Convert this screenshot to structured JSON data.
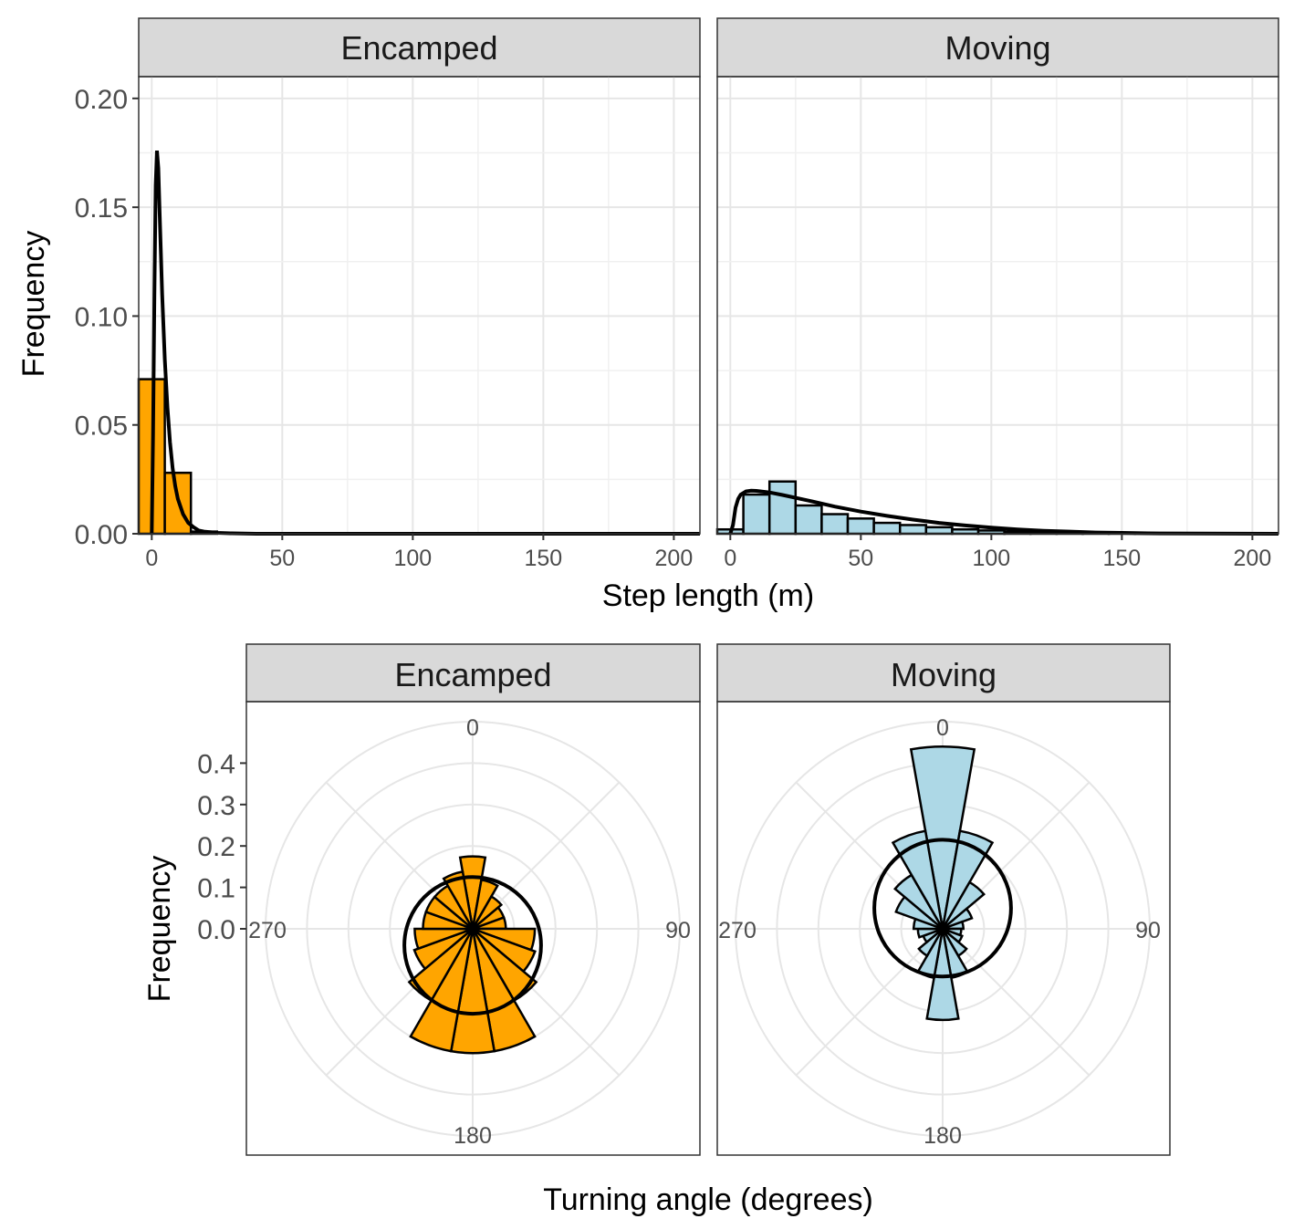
{
  "figure": {
    "top_xlabel": "Step length (m)",
    "top_ylabel": "Frequency",
    "bottom_xlabel": "Turning angle (degrees)",
    "bottom_ylabel": "Frequency"
  },
  "colors": {
    "encamped": "#FFA500",
    "moving": "#ADD8E6"
  },
  "chart_data": [
    {
      "type": "bar",
      "title": "Encamped",
      "xlabel": "Step length (m)",
      "ylabel": "Frequency",
      "xlim": [
        -5,
        210
      ],
      "ylim": [
        0,
        0.21
      ],
      "xticks": [
        "0",
        "50",
        "100",
        "150",
        "200"
      ],
      "yticks": [
        "0.00",
        "0.05",
        "0.10",
        "0.15",
        "0.20"
      ],
      "bin_width": 10,
      "bin_centers": [
        0,
        10,
        20
      ],
      "values": [
        0.071,
        0.028,
        0.001
      ],
      "density_curve": {
        "x": [
          0,
          0.5,
          1,
          1.5,
          2,
          2.5,
          3,
          4,
          5,
          6,
          7,
          8,
          9,
          10,
          12,
          14,
          16,
          18,
          20,
          25,
          30,
          40,
          60,
          100,
          150,
          210
        ],
        "y": [
          0,
          0.045,
          0.11,
          0.16,
          0.176,
          0.168,
          0.148,
          0.11,
          0.08,
          0.058,
          0.042,
          0.03,
          0.022,
          0.016,
          0.009,
          0.005,
          0.003,
          0.0015,
          0.001,
          0.0004,
          0.0002,
          0,
          0,
          0,
          0,
          0
        ]
      }
    },
    {
      "type": "bar",
      "title": "Moving",
      "xlabel": "Step length (m)",
      "ylabel": "Frequency",
      "xlim": [
        -5,
        210
      ],
      "ylim": [
        0,
        0.21
      ],
      "xticks": [
        "0",
        "50",
        "100",
        "150",
        "200"
      ],
      "bin_width": 10,
      "bin_centers": [
        0,
        10,
        20,
        30,
        40,
        50,
        60,
        70,
        80,
        90,
        100,
        110,
        120,
        130,
        140,
        150,
        160,
        170,
        180,
        190,
        200
      ],
      "values": [
        0.002,
        0.018,
        0.024,
        0.013,
        0.009,
        0.007,
        0.005,
        0.004,
        0.003,
        0.002,
        0.0015,
        0.001,
        0.0007,
        0.0005,
        0.0003,
        0.0002,
        0.0001,
        0.0001,
        0,
        0,
        0
      ],
      "density_curve": {
        "x": [
          0,
          1,
          2,
          3,
          4,
          6,
          8,
          10,
          15,
          20,
          30,
          40,
          50,
          60,
          70,
          80,
          90,
          100,
          110,
          120,
          130,
          140,
          150,
          160,
          180,
          210
        ],
        "y": [
          0,
          0.004,
          0.012,
          0.016,
          0.018,
          0.0195,
          0.0198,
          0.0197,
          0.019,
          0.0178,
          0.0152,
          0.0125,
          0.0102,
          0.0082,
          0.0065,
          0.005,
          0.0038,
          0.0028,
          0.002,
          0.0014,
          0.001,
          0.0006,
          0.0004,
          0.0002,
          0.0001,
          0
        ]
      }
    },
    {
      "type": "polar-bar",
      "title": "Encamped",
      "xlabel": "Turning angle (degrees)",
      "ylabel": "Frequency",
      "rlim": [
        0,
        0.5
      ],
      "rticks": [
        "0.0",
        "0.1",
        "0.2",
        "0.3",
        "0.4"
      ],
      "angle_labels": [
        "0",
        "90",
        "180",
        "270"
      ],
      "bin_width_deg": 20,
      "bin_centers_deg": [
        0,
        20,
        40,
        60,
        80,
        100,
        120,
        140,
        160,
        180,
        200,
        220,
        240,
        260,
        280,
        300,
        320,
        340
      ],
      "values": [
        0.175,
        0.12,
        0.09,
        0.08,
        0.08,
        0.15,
        0.16,
        0.2,
        0.3,
        0.3,
        0.3,
        0.2,
        0.15,
        0.14,
        0.12,
        0.12,
        0.12,
        0.14
      ],
      "fitted_circle": {
        "center_r": 0.04,
        "center_angle_deg": 180,
        "radius": 0.165
      }
    },
    {
      "type": "polar-bar",
      "title": "Moving",
      "xlabel": "Turning angle (degrees)",
      "ylabel": "Frequency",
      "rlim": [
        0,
        0.5
      ],
      "angle_labels": [
        "0",
        "90",
        "180",
        "270"
      ],
      "bin_width_deg": 20,
      "bin_centers_deg": [
        0,
        20,
        40,
        60,
        80,
        100,
        120,
        140,
        160,
        180,
        200,
        220,
        240,
        260,
        280,
        300,
        320,
        340
      ],
      "values": [
        0.44,
        0.24,
        0.13,
        0.075,
        0.05,
        0.045,
        0.05,
        0.075,
        0.12,
        0.22,
        0.12,
        0.075,
        0.05,
        0.06,
        0.07,
        0.12,
        0.15,
        0.24
      ],
      "fitted_circle": {
        "center_r": 0.05,
        "center_angle_deg": 0,
        "radius": 0.165
      }
    }
  ]
}
